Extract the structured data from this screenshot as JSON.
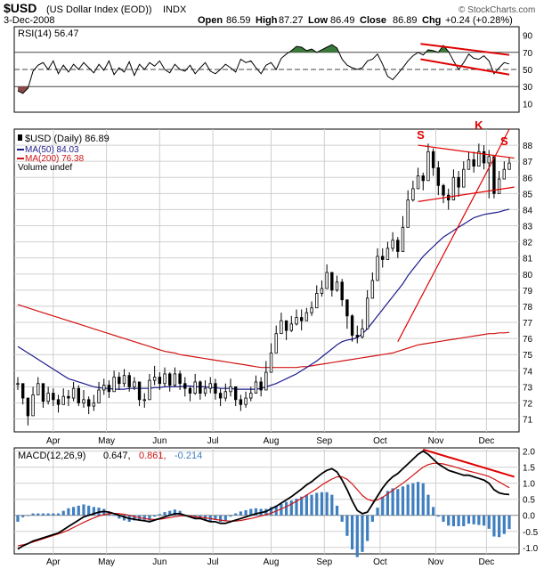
{
  "header": {
    "symbol": "$USD",
    "name": "(US Dollar Index (EOD))",
    "exchange": "INDX",
    "date": "3-Dec-2008",
    "open_label": "Open",
    "open_value": "86.59",
    "high_label": "High",
    "high_value": "87.27",
    "low_label": "Low",
    "low_value": "86.49",
    "close_label": "Close",
    "close_value": "86.89",
    "chg_label": "Chg",
    "chg_value": "+0.24 (+0.28%)",
    "credit": "© StockCharts.com"
  },
  "colors": {
    "price": "#000000",
    "ma50": "#1c1c8c",
    "ma200": "#d01414",
    "trend": "#e00000",
    "rsi_fill": "#3a7a3a",
    "rsi_low_fill": "#8a4a4a",
    "hist": "#3f7fc0",
    "grid": "#cfcfcf"
  },
  "chart_data": [
    {
      "panel": "rsi",
      "type": "line",
      "legend": "RSI(14) 56.47",
      "ylim": [
        0,
        100
      ],
      "yticks": [
        90,
        70,
        50,
        30,
        10
      ],
      "reference_lines": [
        70,
        50,
        30
      ],
      "x": [
        0,
        2,
        4,
        6,
        8,
        10,
        12,
        14,
        16,
        18,
        20,
        22,
        24,
        26,
        28,
        30,
        32,
        34,
        36,
        38,
        40,
        42,
        44,
        46,
        48,
        50,
        52,
        54,
        56,
        58,
        60,
        62,
        64,
        66,
        68,
        70,
        72,
        74,
        76,
        78,
        80,
        82,
        84,
        86,
        88,
        90,
        92,
        94,
        96,
        98,
        100,
        102,
        104,
        106,
        108,
        110,
        112,
        114,
        116,
        118,
        120,
        122,
        124,
        126,
        128,
        130,
        132,
        134,
        136,
        138,
        140,
        142,
        144,
        146,
        148,
        150,
        152,
        154,
        156,
        158,
        160,
        162,
        164,
        166,
        168,
        170,
        172,
        174,
        176,
        178,
        180,
        182,
        184,
        186,
        188,
        190,
        192,
        194
      ],
      "values": [
        25,
        22,
        28,
        48,
        55,
        58,
        50,
        60,
        45,
        55,
        47,
        56,
        50,
        58,
        52,
        46,
        56,
        49,
        60,
        44,
        52,
        47,
        59,
        43,
        56,
        50,
        58,
        54,
        60,
        50,
        46,
        56,
        50,
        48,
        55,
        45,
        52,
        58,
        48,
        45,
        50,
        56,
        52,
        47,
        62,
        58,
        60,
        52,
        45,
        55,
        58,
        50,
        63,
        68,
        72,
        77,
        76,
        72,
        74,
        70,
        73,
        76,
        79,
        75,
        62,
        55,
        52,
        50,
        52,
        60,
        62,
        68,
        56,
        42,
        38,
        45,
        52,
        60,
        66,
        70,
        67,
        73,
        72,
        70,
        78,
        71,
        60,
        50,
        58,
        68,
        63,
        62,
        66,
        60,
        45,
        52,
        58,
        56.47
      ],
      "trendlines": [
        {
          "start": [
            159,
            80
          ],
          "end": [
            194,
            67
          ]
        },
        {
          "start": [
            159,
            62
          ],
          "end": [
            194,
            44
          ]
        }
      ]
    },
    {
      "panel": "price",
      "type": "candlestick",
      "title": "$USD (Daily) 86.89",
      "legend": [
        "MA(50) 84.03",
        "MA(200) 76.38",
        "Volume undef"
      ],
      "x_tick_labels": [
        "Apr",
        "May",
        "Jun",
        "Jul",
        "Aug",
        "Sep",
        "Oct",
        "Nov",
        "Dec"
      ],
      "x_tick_index": [
        14,
        35,
        56,
        77,
        100,
        121,
        143,
        165,
        185
      ],
      "ylim": [
        70.2,
        89
      ],
      "yticks": [
        71,
        72,
        73,
        74,
        75,
        76,
        77,
        78,
        79,
        80,
        81,
        82,
        83,
        84,
        85,
        86,
        87,
        88
      ],
      "x": [
        0,
        2,
        4,
        6,
        8,
        10,
        12,
        14,
        16,
        18,
        20,
        22,
        24,
        26,
        28,
        30,
        32,
        34,
        36,
        38,
        40,
        42,
        44,
        46,
        48,
        50,
        52,
        54,
        56,
        58,
        60,
        62,
        64,
        66,
        68,
        70,
        72,
        74,
        76,
        78,
        80,
        82,
        84,
        86,
        88,
        90,
        92,
        94,
        96,
        98,
        100,
        102,
        104,
        106,
        108,
        110,
        112,
        114,
        116,
        118,
        120,
        122,
        124,
        126,
        128,
        130,
        132,
        134,
        136,
        138,
        140,
        142,
        144,
        146,
        148,
        150,
        152,
        154,
        156,
        158,
        160,
        162,
        164,
        166,
        168,
        170,
        172,
        174,
        176,
        178,
        180,
        182,
        184,
        186,
        188,
        190,
        192,
        194
      ],
      "close": [
        73.2,
        72.3,
        71.2,
        72.5,
        73.2,
        72.1,
        72.6,
        72.2,
        71.9,
        72.4,
        72.3,
        72.9,
        72.0,
        72.2,
        71.8,
        72.0,
        72.8,
        73.1,
        72.7,
        73.6,
        73.2,
        73.7,
        73.0,
        73.3,
        72.2,
        72.2,
        73.4,
        73.6,
        73.2,
        73.8,
        73.1,
        73.8,
        73.2,
        72.9,
        72.6,
        73.3,
        72.6,
        72.9,
        73.2,
        72.6,
        72.3,
        72.7,
        73.0,
        72.2,
        71.9,
        72.3,
        72.6,
        73.3,
        72.8,
        73.9,
        75.1,
        76.3,
        77.1,
        76.5,
        76.9,
        77.3,
        77.1,
        77.6,
        77.9,
        78.8,
        79.1,
        80.1,
        79.0,
        79.5,
        78.4,
        77.4,
        76.2,
        76.1,
        76.6,
        78.5,
        79.6,
        81.1,
        80.9,
        81.6,
        82.1,
        81.4,
        82.9,
        84.6,
        85.3,
        86.1,
        85.8,
        87.6,
        86.6,
        85.5,
        84.9,
        84.6,
        86.0,
        85.4,
        86.5,
        87.1,
        86.7,
        87.6,
        86.9,
        87.3,
        85.0,
        85.9,
        86.5,
        86.89
      ],
      "high": [
        73.6,
        72.8,
        72.3,
        73.0,
        73.6,
        73.0,
        73.0,
        72.9,
        72.5,
        72.9,
        72.8,
        73.3,
        73.1,
        72.8,
        72.4,
        72.5,
        73.3,
        73.5,
        73.4,
        74.0,
        73.9,
        74.1,
        73.9,
        73.6,
        73.3,
        72.6,
        73.8,
        74.3,
        73.9,
        74.2,
        73.9,
        74.2,
        74.0,
        73.6,
        73.0,
        73.8,
        73.4,
        73.4,
        73.6,
        73.5,
        72.9,
        73.2,
        73.5,
        72.9,
        72.5,
        72.7,
        73.0,
        73.7,
        73.6,
        74.6,
        75.7,
        76.8,
        77.6,
        77.1,
        77.4,
        77.8,
        77.8,
        77.9,
        78.3,
        79.3,
        79.6,
        80.6,
        80.0,
        79.9,
        79.7,
        78.4,
        77.5,
        76.8,
        77.2,
        79.0,
        80.1,
        81.6,
        81.6,
        82.0,
        82.6,
        82.3,
        83.6,
        85.2,
        85.8,
        86.6,
        86.3,
        88.1,
        87.8,
        87.0,
        85.6,
        85.3,
        86.5,
        86.4,
        87.0,
        87.6,
        87.6,
        88.1,
        88.0,
        87.7,
        87.1,
        86.4,
        87.0,
        87.27
      ],
      "low": [
        72.8,
        71.9,
        70.6,
        71.5,
        72.5,
        71.7,
        71.9,
        71.8,
        71.4,
        71.9,
        71.8,
        72.1,
        71.8,
        71.7,
        71.3,
        71.5,
        72.1,
        72.5,
        72.3,
        72.9,
        72.8,
        73.0,
        72.7,
        72.8,
        71.8,
        71.7,
        72.6,
        73.1,
        72.8,
        73.0,
        72.7,
        73.0,
        72.8,
        72.4,
        72.1,
        72.5,
        72.2,
        72.4,
        72.6,
        72.2,
        71.8,
        72.1,
        72.4,
        71.8,
        71.5,
        71.7,
        72.1,
        72.7,
        72.4,
        73.2,
        74.4,
        75.1,
        76.5,
        75.9,
        76.4,
        76.8,
        76.5,
        77.2,
        77.4,
        78.2,
        78.6,
        79.4,
        78.6,
        78.9,
        78.0,
        76.6,
        75.8,
        75.7,
        76.0,
        77.2,
        79.1,
        80.0,
        80.4,
        81.0,
        81.4,
        81.0,
        82.0,
        83.8,
        84.5,
        85.6,
        85.2,
        86.3,
        86.1,
        84.9,
        84.4,
        84.0,
        85.1,
        84.8,
        85.6,
        86.6,
        86.3,
        86.9,
        86.5,
        84.7,
        84.7,
        85.2,
        85.9,
        86.49
      ],
      "ma50": [
        75.5,
        75.3,
        75.1,
        74.9,
        74.7,
        74.5,
        74.3,
        74.1,
        73.9,
        73.7,
        73.5,
        73.4,
        73.3,
        73.2,
        73.1,
        73.0,
        72.95,
        72.9,
        72.9,
        72.85,
        72.85,
        72.85,
        72.9,
        72.9,
        72.9,
        72.9,
        72.9,
        72.95,
        72.95,
        73.0,
        73.0,
        73.0,
        73.0,
        73.05,
        73.05,
        73.0,
        73.0,
        73.0,
        72.95,
        72.95,
        72.9,
        72.9,
        72.9,
        72.85,
        72.85,
        72.85,
        72.85,
        72.85,
        72.9,
        73.0,
        73.1,
        73.2,
        73.35,
        73.5,
        73.65,
        73.8,
        74.0,
        74.2,
        74.4,
        74.6,
        74.85,
        75.1,
        75.35,
        75.6,
        75.8,
        75.9,
        75.95,
        76.05,
        76.3,
        76.6,
        77.0,
        77.4,
        77.8,
        78.2,
        78.6,
        79.0,
        79.4,
        79.9,
        80.3,
        80.7,
        81.1,
        81.4,
        81.7,
        82.0,
        82.3,
        82.5,
        82.7,
        82.9,
        83.1,
        83.3,
        83.5,
        83.6,
        83.7,
        83.75,
        83.8,
        83.85,
        83.95,
        84.03
      ],
      "ma200": [
        78.1,
        78.0,
        77.9,
        77.8,
        77.7,
        77.6,
        77.5,
        77.4,
        77.3,
        77.2,
        77.1,
        77.0,
        76.9,
        76.8,
        76.7,
        76.6,
        76.5,
        76.4,
        76.3,
        76.2,
        76.1,
        76.0,
        75.9,
        75.8,
        75.7,
        75.6,
        75.5,
        75.4,
        75.3,
        75.2,
        75.15,
        75.1,
        75.0,
        74.95,
        74.9,
        74.85,
        74.8,
        74.75,
        74.7,
        74.65,
        74.6,
        74.55,
        74.5,
        74.45,
        74.4,
        74.35,
        74.3,
        74.25,
        74.2,
        74.2,
        74.2,
        74.2,
        74.2,
        74.2,
        74.2,
        74.2,
        74.25,
        74.25,
        74.3,
        74.35,
        74.4,
        74.45,
        74.5,
        74.55,
        74.6,
        74.65,
        74.7,
        74.75,
        74.8,
        74.85,
        74.9,
        74.95,
        75.0,
        75.05,
        75.1,
        75.2,
        75.3,
        75.4,
        75.5,
        75.6,
        75.65,
        75.7,
        75.75,
        75.8,
        75.85,
        75.9,
        75.95,
        76.0,
        76.05,
        76.1,
        76.15,
        76.2,
        76.25,
        76.3,
        76.3,
        76.35,
        76.35,
        76.38
      ],
      "trendlines": [
        {
          "start": [
            150,
            75.8
          ],
          "end": [
            194,
            89.0
          ]
        },
        {
          "start": [
            158,
            88.0
          ],
          "end": [
            196,
            87.2
          ]
        },
        {
          "start": [
            158,
            84.5
          ],
          "end": [
            196,
            85.4
          ]
        }
      ],
      "annotations": [
        {
          "text": "S",
          "x": 159,
          "y": 88.4
        },
        {
          "text": "K",
          "x": 182,
          "y": 89.0
        },
        {
          "text": "S",
          "x": 192,
          "y": 88.0
        }
      ]
    },
    {
      "panel": "macd",
      "type": "line",
      "legend": [
        "MACD(12,26,9)",
        "0.647,",
        "0.861,",
        "-0.214"
      ],
      "ylim": [
        -1.2,
        2.1
      ],
      "yticks": [
        2.0,
        1.5,
        1.0,
        0.5,
        0.0,
        -0.5,
        -1.0
      ],
      "x": [
        0,
        2,
        4,
        6,
        8,
        10,
        12,
        14,
        16,
        18,
        20,
        22,
        24,
        26,
        28,
        30,
        32,
        34,
        36,
        38,
        40,
        42,
        44,
        46,
        48,
        50,
        52,
        54,
        56,
        58,
        60,
        62,
        64,
        66,
        68,
        70,
        72,
        74,
        76,
        78,
        80,
        82,
        84,
        86,
        88,
        90,
        92,
        94,
        96,
        98,
        100,
        102,
        104,
        106,
        108,
        110,
        112,
        114,
        116,
        118,
        120,
        122,
        124,
        126,
        128,
        130,
        132,
        134,
        136,
        138,
        140,
        142,
        144,
        146,
        148,
        150,
        152,
        154,
        156,
        158,
        160,
        162,
        164,
        166,
        168,
        170,
        172,
        174,
        176,
        178,
        180,
        182,
        184,
        186,
        188,
        190,
        192,
        194
      ],
      "macd": [
        -1.05,
        -0.95,
        -0.88,
        -0.8,
        -0.75,
        -0.7,
        -0.65,
        -0.6,
        -0.55,
        -0.45,
        -0.35,
        -0.25,
        -0.15,
        -0.05,
        0.0,
        0.05,
        0.1,
        0.12,
        0.1,
        0.05,
        0.0,
        -0.05,
        -0.1,
        -0.12,
        -0.15,
        -0.17,
        -0.2,
        -0.15,
        -0.1,
        -0.05,
        0.0,
        0.05,
        0.05,
        0.0,
        -0.05,
        -0.1,
        -0.1,
        -0.15,
        -0.2,
        -0.2,
        -0.25,
        -0.25,
        -0.2,
        -0.15,
        -0.1,
        -0.05,
        0.0,
        0.05,
        0.08,
        0.12,
        0.2,
        0.28,
        0.38,
        0.48,
        0.58,
        0.7,
        0.82,
        0.95,
        1.05,
        1.18,
        1.3,
        1.4,
        1.45,
        1.35,
        1.1,
        0.8,
        0.45,
        0.15,
        0.05,
        0.1,
        0.35,
        0.6,
        0.85,
        1.05,
        1.2,
        1.3,
        1.45,
        1.6,
        1.75,
        1.9,
        2.0,
        1.9,
        1.75,
        1.6,
        1.5,
        1.4,
        1.35,
        1.3,
        1.25,
        1.25,
        1.2,
        1.15,
        1.1,
        1.0,
        0.8,
        0.7,
        0.66,
        0.647
      ],
      "signal": [
        -0.95,
        -0.92,
        -0.88,
        -0.83,
        -0.78,
        -0.73,
        -0.68,
        -0.63,
        -0.58,
        -0.52,
        -0.46,
        -0.38,
        -0.3,
        -0.22,
        -0.15,
        -0.08,
        -0.02,
        0.02,
        0.05,
        0.06,
        0.05,
        0.03,
        0.0,
        -0.04,
        -0.07,
        -0.1,
        -0.12,
        -0.13,
        -0.12,
        -0.1,
        -0.07,
        -0.04,
        -0.02,
        -0.01,
        -0.02,
        -0.04,
        -0.06,
        -0.08,
        -0.1,
        -0.13,
        -0.15,
        -0.17,
        -0.18,
        -0.18,
        -0.16,
        -0.13,
        -0.1,
        -0.06,
        -0.02,
        0.02,
        0.07,
        0.13,
        0.2,
        0.27,
        0.35,
        0.44,
        0.53,
        0.63,
        0.73,
        0.83,
        0.94,
        1.04,
        1.13,
        1.2,
        1.2,
        1.12,
        0.98,
        0.8,
        0.62,
        0.5,
        0.45,
        0.48,
        0.56,
        0.67,
        0.78,
        0.89,
        1.0,
        1.12,
        1.25,
        1.38,
        1.5,
        1.58,
        1.62,
        1.62,
        1.6,
        1.56,
        1.52,
        1.47,
        1.42,
        1.38,
        1.34,
        1.3,
        1.26,
        1.21,
        1.13,
        1.04,
        0.95,
        0.861
      ]
    }
  ]
}
